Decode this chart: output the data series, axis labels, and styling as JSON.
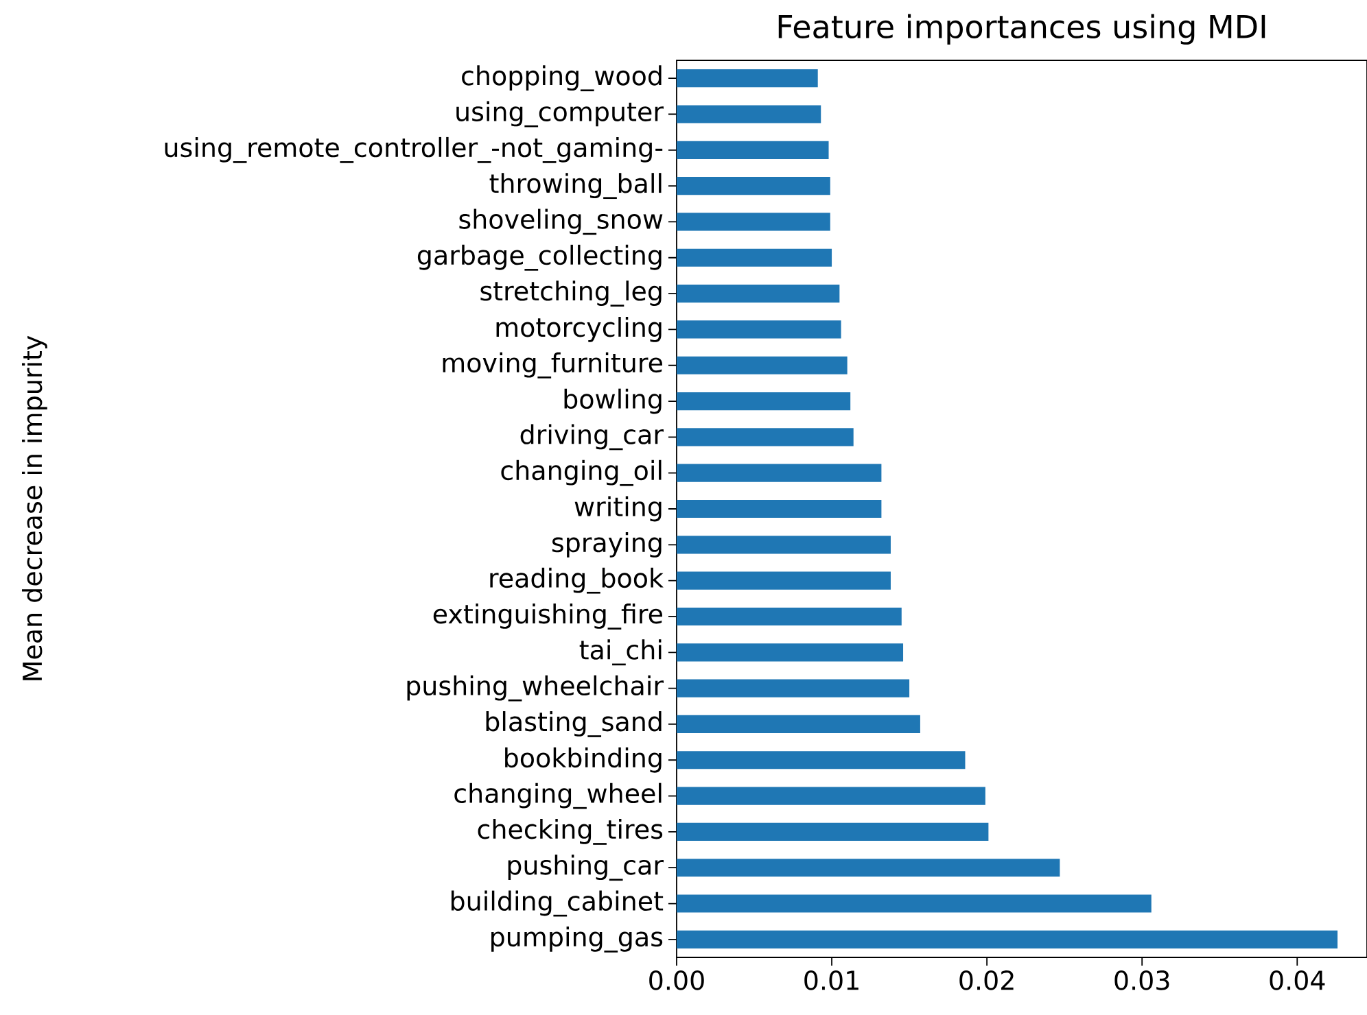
{
  "chart_data": {
    "type": "bar",
    "orientation": "horizontal",
    "title": "Feature importances using MDI",
    "ylabel": "Mean decrease in impurity",
    "categories": [
      "chopping_wood",
      "using_computer",
      "using_remote_controller_-not_gaming-",
      "throwing_ball",
      "shoveling_snow",
      "garbage_collecting",
      "stretching_leg",
      "motorcycling",
      "moving_furniture",
      "bowling",
      "driving_car",
      "changing_oil",
      "writing",
      "spraying",
      "reading_book",
      "extinguishing_fire",
      "tai_chi",
      "pushing_wheelchair",
      "blasting_sand",
      "bookbinding",
      "changing_wheel",
      "checking_tires",
      "pushing_car",
      "building_cabinet",
      "pumping_gas"
    ],
    "values": [
      0.0091,
      0.0093,
      0.0098,
      0.0099,
      0.0099,
      0.01,
      0.0105,
      0.0106,
      0.011,
      0.0112,
      0.0114,
      0.0132,
      0.0132,
      0.0138,
      0.0138,
      0.0145,
      0.0146,
      0.015,
      0.0157,
      0.0186,
      0.0199,
      0.0201,
      0.0247,
      0.0306,
      0.0426
    ],
    "color": "#1f77b4",
    "xlim": [
      0,
      0.0445
    ],
    "xticks": [
      {
        "value": 0,
        "label": "0.00"
      },
      0.01,
      0.02,
      0.03,
      0.04
    ]
  }
}
